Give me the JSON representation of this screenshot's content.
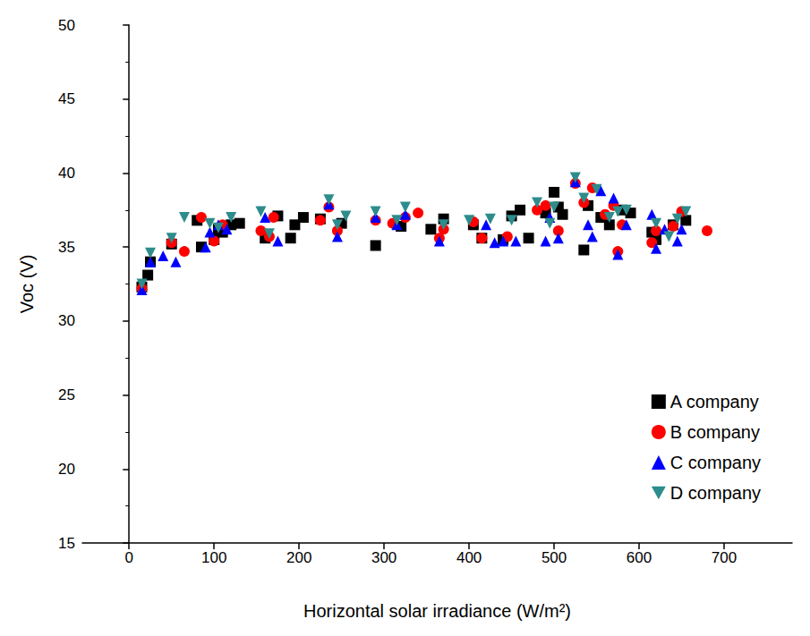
{
  "chart_data": {
    "type": "scatter",
    "x_label": "Horizontal solar irradiance (W/m²)",
    "y_label": "Voc (V)",
    "xlim": [
      -55,
      780
    ],
    "xticks": [
      0,
      100,
      200,
      300,
      400,
      500,
      600,
      700
    ],
    "ylim": [
      15,
      50
    ],
    "yticks": [
      15,
      20,
      25,
      30,
      35,
      40,
      45,
      50
    ],
    "grid": false,
    "legend": "lower right",
    "series": [
      {
        "name": "A company",
        "color": "#000000",
        "marker": "square",
        "x": [
          15,
          22,
          25,
          50,
          80,
          85,
          100,
          105,
          110,
          120,
          130,
          160,
          175,
          190,
          195,
          205,
          225,
          250,
          290,
          320,
          355,
          370,
          405,
          415,
          440,
          450,
          460,
          470,
          490,
          500,
          505,
          510,
          535,
          540,
          555,
          565,
          580,
          590,
          615,
          620,
          640,
          655
        ],
        "values": [
          32.3,
          33.1,
          34.0,
          35.2,
          36.8,
          35.0,
          35.5,
          36.2,
          36.0,
          36.5,
          36.6,
          35.6,
          37.1,
          35.6,
          36.5,
          37.0,
          36.9,
          36.6,
          35.1,
          36.4,
          36.2,
          36.9,
          36.5,
          35.6,
          35.5,
          37.1,
          37.5,
          35.6,
          37.3,
          38.7,
          37.7,
          37.2,
          34.8,
          37.8,
          37.0,
          36.5,
          37.5,
          37.3,
          36.0,
          35.5,
          36.5,
          36.8
        ]
      },
      {
        "name": "B company",
        "color": "#ff0000",
        "marker": "circle",
        "x": [
          15,
          50,
          65,
          85,
          100,
          110,
          155,
          165,
          170,
          225,
          235,
          245,
          290,
          310,
          325,
          340,
          365,
          370,
          405,
          415,
          445,
          480,
          490,
          505,
          525,
          535,
          545,
          560,
          570,
          575,
          580,
          615,
          620,
          640,
          650,
          680
        ],
        "values": [
          32.2,
          35.3,
          34.7,
          37.0,
          35.4,
          36.5,
          36.1,
          35.7,
          37.0,
          36.8,
          37.7,
          36.1,
          36.8,
          36.6,
          37.0,
          37.3,
          35.6,
          36.2,
          36.7,
          35.6,
          35.7,
          37.5,
          37.8,
          36.1,
          39.3,
          38.0,
          39.0,
          37.2,
          37.8,
          34.7,
          36.5,
          35.3,
          36.1,
          36.4,
          37.4,
          36.1
        ]
      },
      {
        "name": "C company",
        "color": "#0000ff",
        "marker": "triangle",
        "x": [
          15,
          25,
          40,
          55,
          90,
          95,
          105,
          115,
          160,
          175,
          235,
          245,
          290,
          315,
          325,
          365,
          420,
          430,
          440,
          455,
          490,
          495,
          505,
          525,
          540,
          545,
          555,
          570,
          575,
          585,
          615,
          620,
          630,
          645,
          650
        ],
        "values": [
          32.1,
          34.0,
          34.4,
          34.0,
          35.0,
          36.0,
          36.5,
          36.2,
          37.0,
          35.4,
          37.9,
          35.7,
          37.0,
          36.5,
          37.2,
          35.4,
          36.5,
          35.3,
          35.4,
          35.4,
          35.4,
          37.0,
          35.6,
          39.4,
          36.5,
          35.7,
          38.8,
          38.3,
          34.5,
          36.5,
          37.2,
          34.9,
          36.2,
          35.4,
          36.2
        ]
      },
      {
        "name": "D company",
        "color": "#2d8c8c",
        "marker": "triangle-down",
        "x": [
          15,
          25,
          50,
          65,
          95,
          105,
          120,
          155,
          165,
          235,
          245,
          255,
          290,
          315,
          325,
          370,
          400,
          425,
          450,
          480,
          495,
          500,
          525,
          535,
          550,
          565,
          575,
          585,
          620,
          635,
          645,
          655
        ],
        "values": [
          32.5,
          34.6,
          35.6,
          37.0,
          36.6,
          36.3,
          37.0,
          37.4,
          35.9,
          38.2,
          36.5,
          37.1,
          37.4,
          36.8,
          37.7,
          36.5,
          36.8,
          36.9,
          36.8,
          38.0,
          36.6,
          37.7,
          39.7,
          38.3,
          38.9,
          37.0,
          37.4,
          37.5,
          36.6,
          35.7,
          36.9,
          37.4
        ]
      }
    ]
  }
}
